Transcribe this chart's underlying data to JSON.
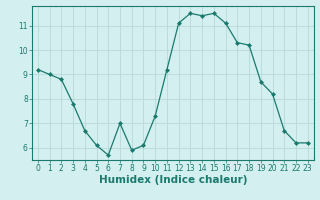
{
  "x": [
    0,
    1,
    2,
    3,
    4,
    5,
    6,
    7,
    8,
    9,
    10,
    11,
    12,
    13,
    14,
    15,
    16,
    17,
    18,
    19,
    20,
    21,
    22,
    23
  ],
  "y": [
    9.2,
    9.0,
    8.8,
    7.8,
    6.7,
    6.1,
    5.7,
    7.0,
    5.9,
    6.1,
    7.3,
    9.2,
    11.1,
    11.5,
    11.4,
    11.5,
    11.1,
    10.3,
    10.2,
    8.7,
    8.2,
    6.7,
    6.2,
    6.2
  ],
  "xlabel": "Humidex (Indice chaleur)",
  "line_color": "#1a7a6e",
  "marker_color": "#1a7a6e",
  "bg_color": "#d4efef",
  "grid_color": "#b8d8d8",
  "ylim": [
    5.5,
    11.8
  ],
  "yticks": [
    6,
    7,
    8,
    9,
    10,
    11
  ],
  "xticks": [
    0,
    1,
    2,
    3,
    4,
    5,
    6,
    7,
    8,
    9,
    10,
    11,
    12,
    13,
    14,
    15,
    16,
    17,
    18,
    19,
    20,
    21,
    22,
    23
  ],
  "tick_label_fontsize": 5.5,
  "xlabel_fontsize": 7.5
}
